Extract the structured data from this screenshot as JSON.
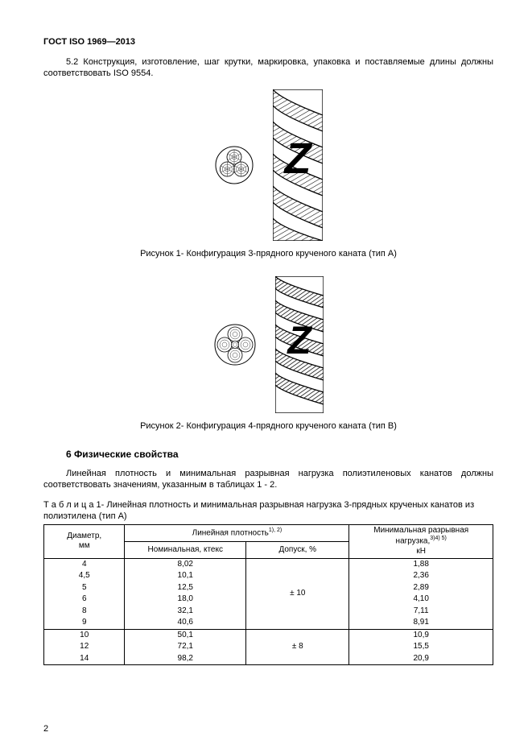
{
  "header": "ГОСТ ISO 1969—2013",
  "para52_prefix": "5.2",
  "para52_text": "Конструкция, изготовление, шаг крутки, маркировка, упаковка и поставляемые длины должны соответствовать ISO 9554.",
  "fig1_caption": "Рисунок 1- Конфигурация 3-прядного крученого каната (тип А)",
  "fig2_caption": "Рисунок 2- Конфигурация 4-прядного крученого каната (тип В)",
  "section6_title": "6 Физические свойства",
  "section6_para": "Линейная плотность и минимальная разрывная нагрузка полиэтиленовых канатов должны соответствовать значениям, указанным в таблицах 1 - 2.",
  "table1_caption": "Т а б л и ц а  1- Линейная плотность и минимальная разрывная нагрузка 3-прядных крученых канатов из полиэтилена (тип А)",
  "table1": {
    "col_diam": "Диаметр,",
    "col_diam_unit": "мм",
    "col_density": "Линейная плотность",
    "col_density_sup": "1), 2)",
    "col_load": "Минимальная разрывная нагрузка,",
    "col_load_sup": "3)4) 5)",
    "col_load_unit": "кН",
    "col_nominal": "Номинальная, ктекс",
    "col_tolerance": "Допуск, %",
    "groups": [
      {
        "tolerance": "± 10",
        "rows": [
          {
            "d": "4",
            "nom": "8,02",
            "load": "1,88"
          },
          {
            "d": "4,5",
            "nom": "10,1",
            "load": "2,36"
          },
          {
            "d": "5",
            "nom": "12,5",
            "load": "2,89"
          },
          {
            "d": "6",
            "nom": "18,0",
            "load": "4,10"
          },
          {
            "d": "8",
            "nom": "32,1",
            "load": "7,11"
          },
          {
            "d": "9",
            "nom": "40,6",
            "load": "8,91"
          }
        ]
      },
      {
        "tolerance": "± 8",
        "rows": [
          {
            "d": "10",
            "nom": "50,1",
            "load": "10,9"
          },
          {
            "d": "12",
            "nom": "72,1",
            "load": "15,5"
          },
          {
            "d": "14",
            "nom": "98,2",
            "load": "20,9"
          }
        ]
      }
    ]
  },
  "page_number": "2",
  "style": {
    "fig1": {
      "circle_d": 48,
      "rope_w": 62,
      "rope_h": 188
    },
    "fig2": {
      "circle_d": 52,
      "rope_w": 60,
      "rope_h": 170
    },
    "colors": {
      "stroke": "#000000",
      "fill_light": "#ffffff",
      "rope_dark": "#000000"
    },
    "table_cols_pct": [
      18,
      27,
      23,
      32
    ]
  }
}
